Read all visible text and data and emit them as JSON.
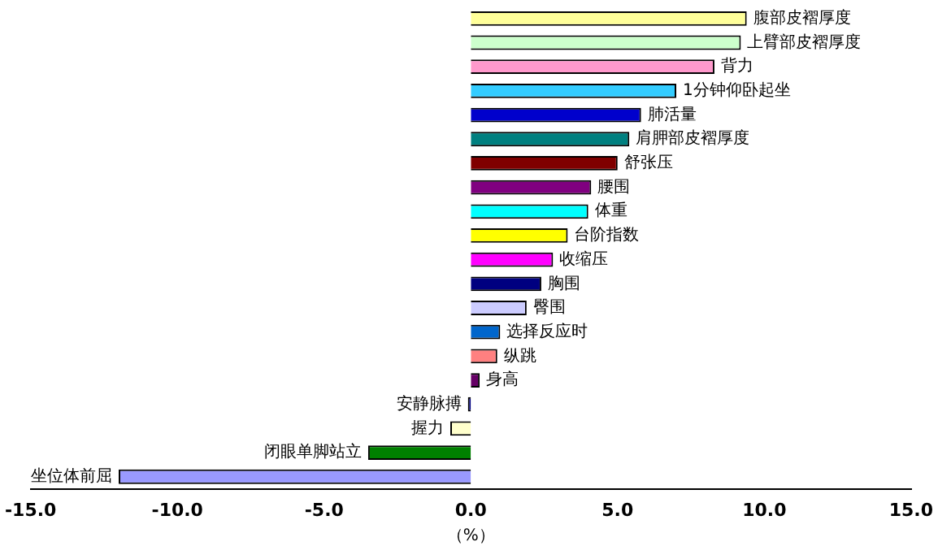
{
  "chart_data": {
    "type": "bar",
    "orientation": "horizontal",
    "xlabel": "（%）",
    "categories": [
      "腹部皮褶厚度",
      "上臂部皮褶厚度",
      "背力",
      "1分钟仰卧起坐",
      "肺活量",
      "肩胛部皮褶厚度",
      "舒张压",
      "腰围",
      "体重",
      "台阶指数",
      "收缩压",
      "胸围",
      "臀围",
      "选择反应时",
      "纵跳",
      "身高",
      "安静脉搏",
      "握力",
      "闭眼单脚站立",
      "坐位体前屈"
    ],
    "values": [
      9.4,
      9.2,
      8.3,
      7.0,
      5.8,
      5.4,
      5.0,
      4.1,
      4.0,
      3.3,
      2.8,
      2.4,
      1.9,
      1.0,
      0.9,
      0.3,
      -0.1,
      -0.7,
      -3.5,
      -12.0
    ],
    "colors": [
      "#ffff99",
      "#ccffcc",
      "#ff99cc",
      "#33ccff",
      "#0000cc",
      "#008080",
      "#800000",
      "#800080",
      "#00ffff",
      "#ffff00",
      "#ff00ff",
      "#000080",
      "#ccccff",
      "#0066cc",
      "#ff8080",
      "#660066",
      "#000080",
      "#ffffcc",
      "#008000",
      "#9999ff"
    ],
    "xlim": [
      -15,
      15
    ],
    "xticks": [
      {
        "value": -15,
        "label": "-15.0"
      },
      {
        "value": -10,
        "label": "-10.0"
      },
      {
        "value": -5,
        "label": "-5.0"
      },
      {
        "value": 0,
        "label": "0.0"
      },
      {
        "value": 5,
        "label": "5.0"
      },
      {
        "value": 10,
        "label": "10.0"
      },
      {
        "value": 15,
        "label": "15.0"
      }
    ],
    "tick_labels": "x",
    "grid": false,
    "legend": false
  }
}
